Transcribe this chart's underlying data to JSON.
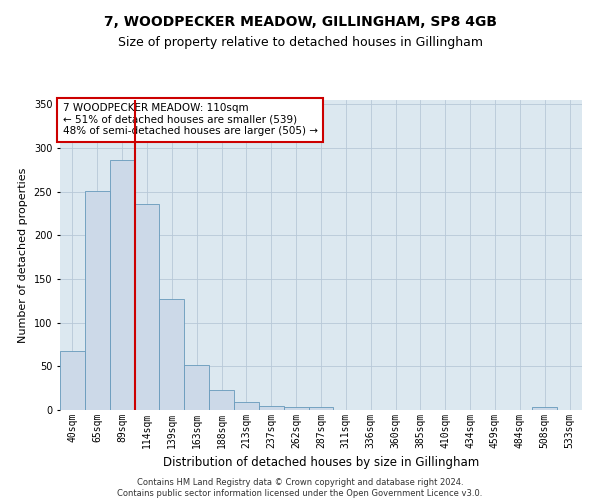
{
  "title": "7, WOODPECKER MEADOW, GILLINGHAM, SP8 4GB",
  "subtitle": "Size of property relative to detached houses in Gillingham",
  "xlabel": "Distribution of detached houses by size in Gillingham",
  "ylabel": "Number of detached properties",
  "categories": [
    "40sqm",
    "65sqm",
    "89sqm",
    "114sqm",
    "139sqm",
    "163sqm",
    "188sqm",
    "213sqm",
    "237sqm",
    "262sqm",
    "287sqm",
    "311sqm",
    "336sqm",
    "360sqm",
    "385sqm",
    "410sqm",
    "434sqm",
    "459sqm",
    "484sqm",
    "508sqm",
    "533sqm"
  ],
  "values": [
    67,
    251,
    286,
    236,
    127,
    52,
    23,
    9,
    5,
    3,
    3,
    0,
    0,
    0,
    0,
    0,
    0,
    0,
    0,
    3,
    0
  ],
  "bar_color": "#ccd9e8",
  "bar_edge_color": "#6699bb",
  "vline_index": 2.5,
  "vline_color": "#cc0000",
  "annotation_line1": "7 WOODPECKER MEADOW: 110sqm",
  "annotation_line2": "← 51% of detached houses are smaller (539)",
  "annotation_line3": "48% of semi-detached houses are larger (505) →",
  "annotation_box_color": "#ffffff",
  "annotation_box_edge": "#cc0000",
  "ylim": [
    0,
    355
  ],
  "yticks": [
    0,
    50,
    100,
    150,
    200,
    250,
    300,
    350
  ],
  "plot_bg_color": "#dce8f0",
  "grid_color": "#b8c8d8",
  "footer_line1": "Contains HM Land Registry data © Crown copyright and database right 2024.",
  "footer_line2": "Contains public sector information licensed under the Open Government Licence v3.0.",
  "title_fontsize": 10,
  "subtitle_fontsize": 9,
  "xlabel_fontsize": 8.5,
  "ylabel_fontsize": 8,
  "tick_fontsize": 7,
  "footer_fontsize": 6,
  "annotation_fontsize": 7.5
}
